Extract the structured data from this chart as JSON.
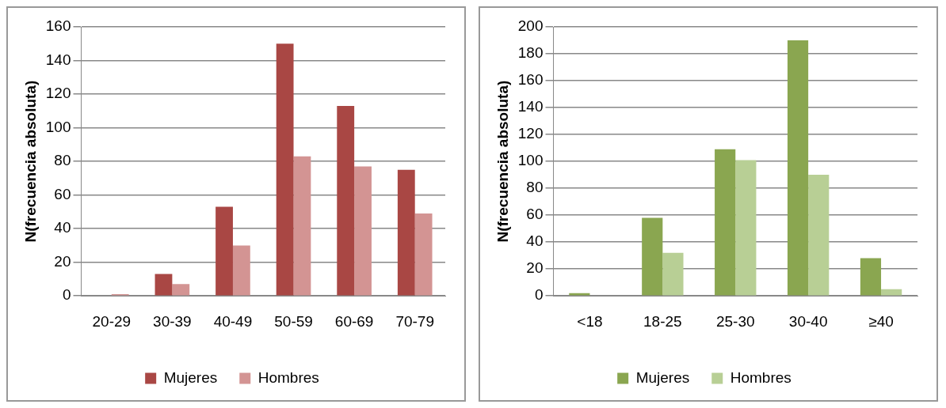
{
  "chart_data": [
    {
      "type": "bar",
      "ylabel": "N(frecuencia absoluta)",
      "categories": [
        "20-29",
        "30-39",
        "40-49",
        "50-59",
        "60-69",
        "70-79"
      ],
      "series": [
        {
          "name": "Mujeres",
          "color": "#a94744",
          "values": [
            0,
            13,
            53,
            150,
            113,
            75
          ]
        },
        {
          "name": "Hombres",
          "color": "#d39493",
          "values": [
            1,
            7,
            30,
            83,
            77,
            49
          ]
        }
      ],
      "ylim": [
        0,
        160
      ],
      "yticks": [
        0,
        20,
        40,
        60,
        80,
        100,
        120,
        140,
        160
      ],
      "grid": "y",
      "legend": "bottom"
    },
    {
      "type": "bar",
      "ylabel": "N(frecuencia absoluta)",
      "categories": [
        "<18",
        "18-25",
        "25-30",
        "30-40",
        "≥40"
      ],
      "series": [
        {
          "name": "Mujeres",
          "color": "#8aa650",
          "values": [
            2,
            58,
            109,
            190,
            28
          ]
        },
        {
          "name": "Hombres",
          "color": "#b8cf95",
          "values": [
            0,
            32,
            101,
            90,
            5
          ]
        }
      ],
      "ylim": [
        0,
        200
      ],
      "yticks": [
        0,
        20,
        40,
        60,
        80,
        100,
        120,
        140,
        160,
        180,
        200
      ],
      "grid": "y",
      "legend": "bottom"
    }
  ]
}
